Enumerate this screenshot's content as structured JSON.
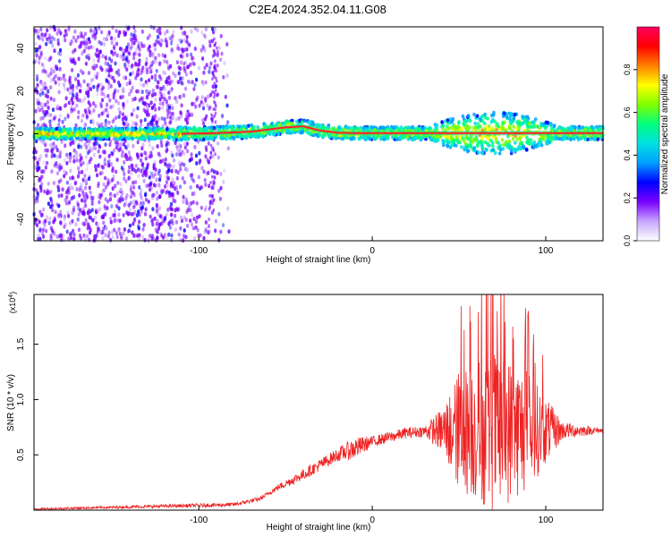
{
  "title": "C2E4.2024.352.04.11.G08",
  "chart_data": [
    {
      "type": "heatmap",
      "xlabel": "Height of straight line (km)",
      "ylabel": "Frequency (Hz)",
      "xlim": [
        -195,
        133
      ],
      "ylim": [
        -50,
        50
      ],
      "xticks": [
        -100,
        0,
        100
      ],
      "yticks": [
        -40,
        -20,
        0,
        20,
        40
      ],
      "colorbar": {
        "label": "Normalized spectral amplitude",
        "range": [
          0,
          1
        ],
        "ticks": [
          0.0,
          0.2,
          0.4,
          0.6,
          0.8
        ],
        "colors": [
          "#ffffff",
          "#c8a6ff",
          "#7a00ff",
          "#0000ff",
          "#00a0ff",
          "#00e0e0",
          "#00ff80",
          "#80ff00",
          "#ffff00",
          "#ff8000",
          "#ff0000",
          "#ff0060"
        ]
      },
      "ridge": [
        {
          "x": -110,
          "y": 0.0
        },
        {
          "x": -90,
          "y": 0.3
        },
        {
          "x": -70,
          "y": 1.0
        },
        {
          "x": -50,
          "y": 3.0
        },
        {
          "x": -40,
          "y": 3.5
        },
        {
          "x": -30,
          "y": 1.5
        },
        {
          "x": -20,
          "y": 0.5
        },
        {
          "x": -10,
          "y": 0.3
        },
        {
          "x": 0,
          "y": 0.3
        },
        {
          "x": 50,
          "y": 0.3
        },
        {
          "x": 100,
          "y": 0.3
        },
        {
          "x": 133,
          "y": 0.3
        }
      ]
    },
    {
      "type": "line",
      "xlabel": "Height of straight line (km)",
      "ylabel": "SNR (10 * v/v)",
      "multiplier": "(x10",
      "multiplier_exp": "4",
      "multiplier_close": ")",
      "xlim": [
        -195,
        133
      ],
      "ylim": [
        0,
        1.95
      ],
      "xticks": [
        -100,
        0,
        100
      ],
      "yticks": [
        0.5,
        1.0,
        1.5
      ],
      "ytick_labels": [
        "0.5",
        "1.0",
        "1.5"
      ],
      "color": "#ee2222",
      "envelope": [
        {
          "x": -195,
          "y": 0.01
        },
        {
          "x": -80,
          "y": 0.05
        },
        {
          "x": -65,
          "y": 0.1
        },
        {
          "x": -55,
          "y": 0.2
        },
        {
          "x": -40,
          "y": 0.32
        },
        {
          "x": -20,
          "y": 0.5
        },
        {
          "x": 0,
          "y": 0.62
        },
        {
          "x": 20,
          "y": 0.7
        },
        {
          "x": 35,
          "y": 0.72
        },
        {
          "x": 40,
          "y": 0.72
        },
        {
          "x": 133,
          "y": 0.72
        }
      ],
      "spread": [
        {
          "x": -195,
          "y": 0.008
        },
        {
          "x": -60,
          "y": 0.02
        },
        {
          "x": -40,
          "y": 0.05
        },
        {
          "x": -20,
          "y": 0.06
        },
        {
          "x": -10,
          "y": 0.1
        },
        {
          "x": 0,
          "y": 0.05
        },
        {
          "x": 30,
          "y": 0.05
        },
        {
          "x": 40,
          "y": 0.2
        },
        {
          "x": 50,
          "y": 0.55
        },
        {
          "x": 70,
          "y": 0.75
        },
        {
          "x": 90,
          "y": 0.55
        },
        {
          "x": 100,
          "y": 0.3
        },
        {
          "x": 110,
          "y": 0.08
        },
        {
          "x": 133,
          "y": 0.02
        }
      ]
    }
  ]
}
